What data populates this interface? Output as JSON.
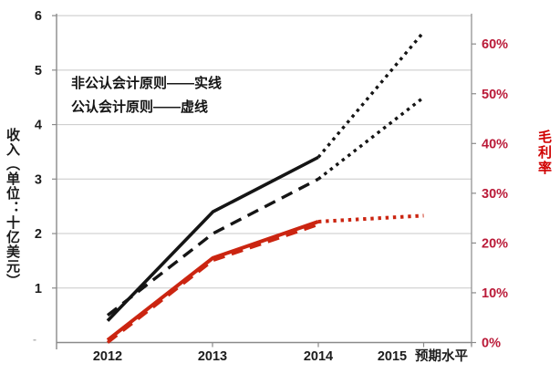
{
  "chart": {
    "legend": {
      "line1": "非公认会计原则——实线",
      "line2": "公认会计原则——虚线"
    },
    "left_axis": {
      "title": "收入（单位：十亿美元）",
      "ticks": [
        "6",
        "5",
        "4",
        "3",
        "2",
        "1"
      ],
      "zero_mark": "-"
    },
    "right_axis": {
      "title": "毛利率",
      "ticks": [
        "60%",
        "50%",
        "40%",
        "30%",
        "20%",
        "10%",
        "0%"
      ]
    },
    "x_axis": {
      "labels": [
        "2012",
        "2013",
        "2014",
        "2015",
        "预期水平"
      ]
    }
  },
  "chart_data": {
    "type": "line",
    "x": [
      2012,
      2013,
      2014,
      2015
    ],
    "x_note": "2015 values are projections (dotted lines); x label reads 2015 预期水平",
    "left_axis": {
      "label": "收入（单位：十亿美元）",
      "range": [
        0,
        6
      ],
      "grid": true
    },
    "right_axis": {
      "label": "毛利率",
      "range": [
        0,
        60
      ],
      "unit": "%"
    },
    "legend_note": "实线 = 非公认会计原则 (non-GAAP), 虚线 = 公认会计原则 (GAAP)",
    "series": [
      {
        "id": "non-gaap-revenue",
        "name": "非公认会计原则收入（实线）",
        "axis": "left",
        "colorKey": "revenue_line",
        "style": "solid",
        "actual": {
          "x": [
            2012,
            2013,
            2014
          ],
          "y": [
            0.4,
            2.4,
            3.4
          ]
        },
        "projected": {
          "x": [
            2014,
            2015
          ],
          "y": [
            3.4,
            5.7
          ]
        }
      },
      {
        "id": "gaap-revenue",
        "name": "公认会计原则收入（虚线）",
        "axis": "left",
        "colorKey": "revenue_line",
        "style": "dashed",
        "actual": {
          "x": [
            2012,
            2013,
            2014
          ],
          "y": [
            0.5,
            2.0,
            3.0
          ]
        },
        "projected": {
          "x": [
            2014,
            2015
          ],
          "y": [
            3.0,
            4.5
          ]
        }
      },
      {
        "id": "non-gaap-margin",
        "name": "非公认会计原则毛利率（实线）",
        "axis": "right",
        "colorKey": "margin_line",
        "style": "solid",
        "actual": {
          "x": [
            2012,
            2013,
            2014
          ],
          "y": [
            0.5,
            17,
            24.3
          ]
        },
        "projected": {
          "x": [
            2014,
            2015
          ],
          "y": [
            24.3,
            25.5
          ]
        }
      },
      {
        "id": "gaap-margin",
        "name": "公认会计原则毛利率（虚线）",
        "axis": "right",
        "colorKey": "margin_line",
        "style": "dashed",
        "actual": {
          "x": [
            2012,
            2013,
            2014
          ],
          "y": [
            0,
            16.5,
            23.7
          ]
        }
      }
    ]
  },
  "colors": {
    "revenue_line": "#151515",
    "margin_line": "#cb2511",
    "pct_label": "#ba1a38",
    "margin_title": "#d00000",
    "grid": "#c8c8c8",
    "axis": "#8a8a8a",
    "text": "#1c1c1c",
    "zero_mark": "#b3b3b3"
  }
}
